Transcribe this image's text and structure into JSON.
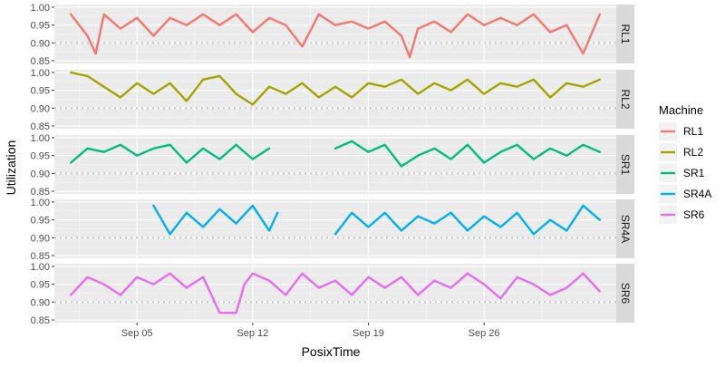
{
  "chart_data": {
    "type": "line",
    "facet_strip_position": "right",
    "xlabel": "PosixTime",
    "ylabel": "Utilization",
    "x_range": [
      "2016-08-31",
      "2016-10-04"
    ],
    "x_ticks": [
      {
        "date": "2016-09-05",
        "label": "Sep 05"
      },
      {
        "date": "2016-09-12",
        "label": "Sep 12"
      },
      {
        "date": "2016-09-19",
        "label": "Sep 19"
      },
      {
        "date": "2016-09-26",
        "label": "Sep 26"
      }
    ],
    "ylim": [
      0.85,
      1.0
    ],
    "y_ticks": [
      0.85,
      0.9,
      0.95,
      1.0
    ],
    "y_tick_labels": [
      "0.85",
      "0.90",
      "0.95",
      "1.00"
    ],
    "reference_line": {
      "y": 0.9,
      "style": "dotted",
      "color": "#c8c8c8"
    },
    "grid": true,
    "panel_background": "#ebebeb",
    "strip_background": "#d9d9d9",
    "legend": {
      "title": "Machine",
      "position": "right"
    },
    "series": [
      {
        "name": "RL1",
        "color": "#F8766D",
        "points": [
          [
            "2016-09-01",
            0.98
          ],
          [
            "2016-09-02",
            0.92
          ],
          [
            "2016-09-02 12:00",
            0.87
          ],
          [
            "2016-09-03",
            0.98
          ],
          [
            "2016-09-04",
            0.94
          ],
          [
            "2016-09-05",
            0.97
          ],
          [
            "2016-09-06",
            0.92
          ],
          [
            "2016-09-07",
            0.97
          ],
          [
            "2016-09-08",
            0.95
          ],
          [
            "2016-09-09",
            0.98
          ],
          [
            "2016-09-10",
            0.95
          ],
          [
            "2016-09-11",
            0.98
          ],
          [
            "2016-09-12",
            0.93
          ],
          [
            "2016-09-13",
            0.97
          ],
          [
            "2016-09-14",
            0.95
          ],
          [
            "2016-09-15",
            0.89
          ],
          [
            "2016-09-16",
            0.98
          ],
          [
            "2016-09-17",
            0.95
          ],
          [
            "2016-09-18",
            0.96
          ],
          [
            "2016-09-19",
            0.94
          ],
          [
            "2016-09-20",
            0.96
          ],
          [
            "2016-09-21",
            0.92
          ],
          [
            "2016-09-21 12:00",
            0.86
          ],
          [
            "2016-09-22",
            0.94
          ],
          [
            "2016-09-23",
            0.96
          ],
          [
            "2016-09-24",
            0.93
          ],
          [
            "2016-09-25",
            0.98
          ],
          [
            "2016-09-26",
            0.95
          ],
          [
            "2016-09-27",
            0.97
          ],
          [
            "2016-09-28",
            0.95
          ],
          [
            "2016-09-29",
            0.98
          ],
          [
            "2016-09-30",
            0.93
          ],
          [
            "2016-10-01",
            0.95
          ],
          [
            "2016-10-02",
            0.87
          ],
          [
            "2016-10-03",
            0.98
          ]
        ]
      },
      {
        "name": "RL2",
        "color": "#A3A500",
        "points": [
          [
            "2016-09-01",
            1.0
          ],
          [
            "2016-09-02",
            0.99
          ],
          [
            "2016-09-03",
            0.96
          ],
          [
            "2016-09-04",
            0.93
          ],
          [
            "2016-09-05",
            0.97
          ],
          [
            "2016-09-06",
            0.94
          ],
          [
            "2016-09-07",
            0.97
          ],
          [
            "2016-09-08",
            0.92
          ],
          [
            "2016-09-09",
            0.98
          ],
          [
            "2016-09-10",
            0.99
          ],
          [
            "2016-09-11",
            0.94
          ],
          [
            "2016-09-12",
            0.91
          ],
          [
            "2016-09-13",
            0.96
          ],
          [
            "2016-09-14",
            0.94
          ],
          [
            "2016-09-15",
            0.97
          ],
          [
            "2016-09-16",
            0.93
          ],
          [
            "2016-09-17",
            0.96
          ],
          [
            "2016-09-18",
            0.93
          ],
          [
            "2016-09-19",
            0.97
          ],
          [
            "2016-09-20",
            0.96
          ],
          [
            "2016-09-21",
            0.98
          ],
          [
            "2016-09-22",
            0.94
          ],
          [
            "2016-09-23",
            0.97
          ],
          [
            "2016-09-24",
            0.95
          ],
          [
            "2016-09-25",
            0.98
          ],
          [
            "2016-09-26",
            0.94
          ],
          [
            "2016-09-27",
            0.97
          ],
          [
            "2016-09-28",
            0.96
          ],
          [
            "2016-09-29",
            0.98
          ],
          [
            "2016-09-30",
            0.93
          ],
          [
            "2016-10-01",
            0.97
          ],
          [
            "2016-10-02",
            0.96
          ],
          [
            "2016-10-03",
            0.98
          ]
        ]
      },
      {
        "name": "SR1",
        "color": "#00BF7D",
        "points": [
          [
            "2016-09-01",
            0.93
          ],
          [
            "2016-09-02",
            0.97
          ],
          [
            "2016-09-03",
            0.96
          ],
          [
            "2016-09-04",
            0.98
          ],
          [
            "2016-09-05",
            0.95
          ],
          [
            "2016-09-06",
            0.97
          ],
          [
            "2016-09-07",
            0.98
          ],
          [
            "2016-09-08",
            0.93
          ],
          [
            "2016-09-09",
            0.97
          ],
          [
            "2016-09-10",
            0.94
          ],
          [
            "2016-09-11",
            0.98
          ],
          [
            "2016-09-12",
            0.94
          ],
          [
            "2016-09-13",
            0.97
          ],
          null,
          [
            "2016-09-17",
            0.97
          ],
          [
            "2016-09-18",
            0.99
          ],
          [
            "2016-09-19",
            0.96
          ],
          [
            "2016-09-20",
            0.98
          ],
          [
            "2016-09-21",
            0.92
          ],
          [
            "2016-09-22",
            0.95
          ],
          [
            "2016-09-23",
            0.97
          ],
          [
            "2016-09-24",
            0.94
          ],
          [
            "2016-09-25",
            0.98
          ],
          [
            "2016-09-26",
            0.93
          ],
          [
            "2016-09-27",
            0.96
          ],
          [
            "2016-09-28",
            0.98
          ],
          [
            "2016-09-29",
            0.94
          ],
          [
            "2016-09-30",
            0.97
          ],
          [
            "2016-10-01",
            0.95
          ],
          [
            "2016-10-02",
            0.98
          ],
          [
            "2016-10-03",
            0.96
          ]
        ]
      },
      {
        "name": "SR4A",
        "color": "#00B0F6",
        "points": [
          [
            "2016-09-06",
            0.99
          ],
          [
            "2016-09-07",
            0.91
          ],
          [
            "2016-09-08",
            0.97
          ],
          [
            "2016-09-09",
            0.93
          ],
          [
            "2016-09-10",
            0.98
          ],
          [
            "2016-09-11",
            0.94
          ],
          [
            "2016-09-12",
            0.99
          ],
          [
            "2016-09-13",
            0.92
          ],
          [
            "2016-09-13 12:00",
            0.97
          ],
          null,
          [
            "2016-09-17",
            0.91
          ],
          [
            "2016-09-18",
            0.97
          ],
          [
            "2016-09-19",
            0.93
          ],
          [
            "2016-09-20",
            0.97
          ],
          [
            "2016-09-21",
            0.92
          ],
          [
            "2016-09-22",
            0.96
          ],
          [
            "2016-09-23",
            0.94
          ],
          [
            "2016-09-24",
            0.97
          ],
          [
            "2016-09-25",
            0.92
          ],
          [
            "2016-09-26",
            0.96
          ],
          [
            "2016-09-27",
            0.93
          ],
          [
            "2016-09-28",
            0.97
          ],
          [
            "2016-09-29",
            0.91
          ],
          [
            "2016-09-30",
            0.95
          ],
          [
            "2016-10-01",
            0.92
          ],
          [
            "2016-10-02",
            0.99
          ],
          [
            "2016-10-03",
            0.95
          ]
        ]
      },
      {
        "name": "SR6",
        "color": "#E76BF3",
        "points": [
          [
            "2016-09-01",
            0.92
          ],
          [
            "2016-09-02",
            0.97
          ],
          [
            "2016-09-03",
            0.95
          ],
          [
            "2016-09-04",
            0.92
          ],
          [
            "2016-09-05",
            0.97
          ],
          [
            "2016-09-06",
            0.95
          ],
          [
            "2016-09-07",
            0.98
          ],
          [
            "2016-09-08",
            0.94
          ],
          [
            "2016-09-09",
            0.97
          ],
          [
            "2016-09-10",
            0.87
          ],
          [
            "2016-09-11",
            0.87
          ],
          [
            "2016-09-11 12:00",
            0.95
          ],
          [
            "2016-09-12",
            0.98
          ],
          [
            "2016-09-13",
            0.96
          ],
          [
            "2016-09-14",
            0.92
          ],
          [
            "2016-09-15",
            0.98
          ],
          [
            "2016-09-16",
            0.94
          ],
          [
            "2016-09-17",
            0.96
          ],
          [
            "2016-09-18",
            0.92
          ],
          [
            "2016-09-19",
            0.97
          ],
          [
            "2016-09-20",
            0.94
          ],
          [
            "2016-09-21",
            0.97
          ],
          [
            "2016-09-22",
            0.92
          ],
          [
            "2016-09-23",
            0.96
          ],
          [
            "2016-09-24",
            0.94
          ],
          [
            "2016-09-25",
            0.98
          ],
          [
            "2016-09-26",
            0.95
          ],
          [
            "2016-09-27",
            0.91
          ],
          [
            "2016-09-28",
            0.97
          ],
          [
            "2016-09-29",
            0.95
          ],
          [
            "2016-09-30",
            0.92
          ],
          [
            "2016-10-01",
            0.94
          ],
          [
            "2016-10-02",
            0.98
          ],
          [
            "2016-10-03",
            0.93
          ]
        ]
      }
    ]
  }
}
